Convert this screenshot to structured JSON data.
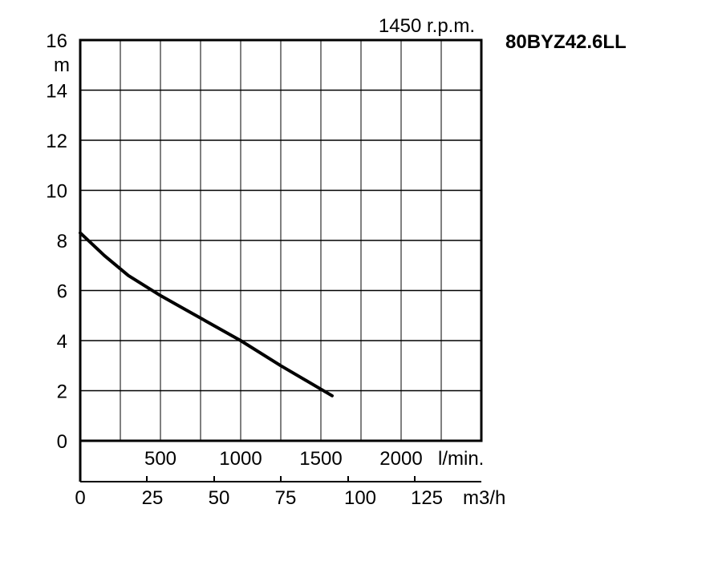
{
  "chart_data": {
    "type": "line",
    "title": "80BYZ42.6LL",
    "subtitle": "1450 r.p.m.",
    "ylabel": "m",
    "ylim": [
      0,
      16
    ],
    "xlim": [
      0,
      2500
    ],
    "grid": true,
    "y_ticks": [
      "0",
      "2",
      "4",
      "6",
      "8",
      "10",
      "12",
      "14",
      "16"
    ],
    "x_ticks_lmin": [
      "500",
      "1000",
      "1500",
      "2000"
    ],
    "x_unit_lmin": "l/min.",
    "x_ticks_m3h": [
      "0",
      "25",
      "50",
      "75",
      "100",
      "125"
    ],
    "x_unit_m3h": "m3/h",
    "series": [
      {
        "x": [
          0,
          150,
          300,
          500,
          750,
          1000,
          1250,
          1570
        ],
        "y": [
          8.3,
          7.4,
          6.6,
          5.8,
          4.9,
          4.0,
          3.0,
          1.8
        ]
      }
    ]
  }
}
